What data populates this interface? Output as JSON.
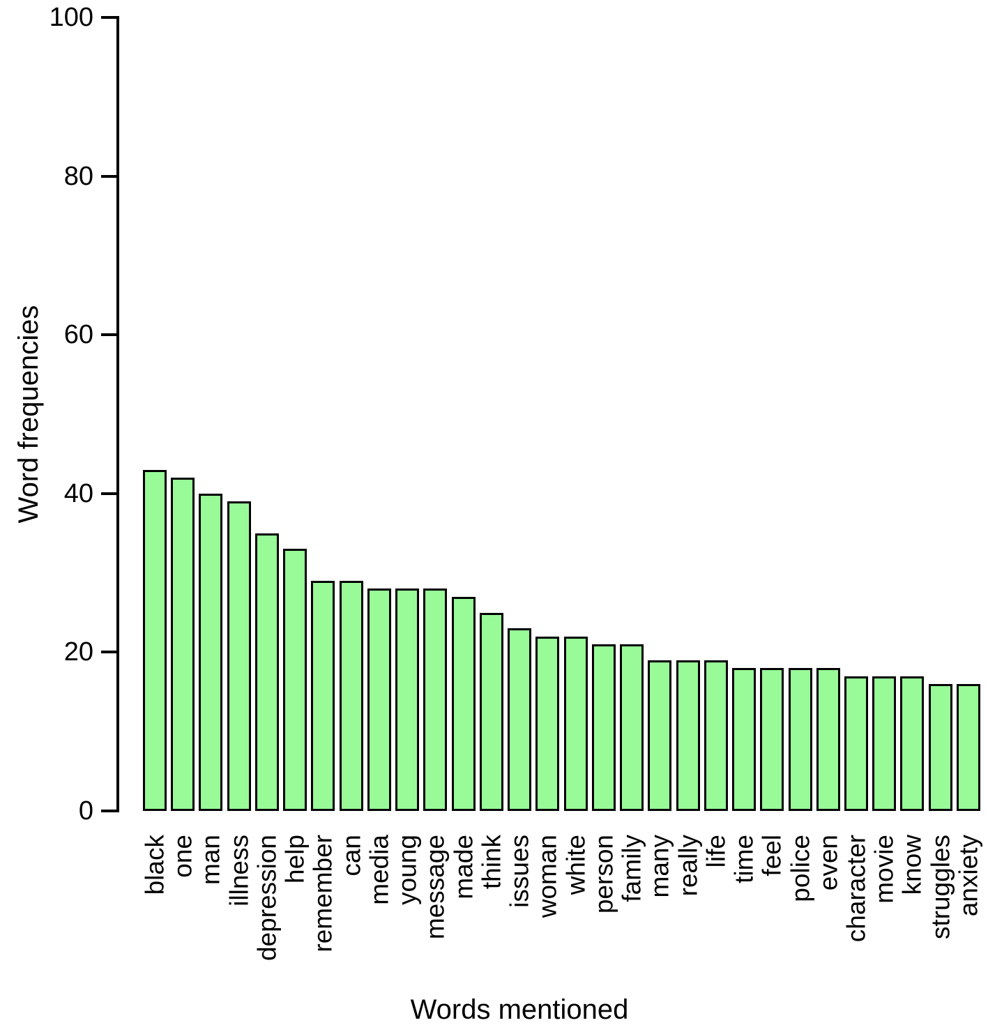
{
  "chart_data": {
    "type": "bar",
    "title": "",
    "xlabel": "Words mentioned",
    "ylabel": "Word frequencies",
    "categories": [
      "black",
      "one",
      "man",
      "illness",
      "depression",
      "help",
      "remember",
      "can",
      "media",
      "young",
      "message",
      "made",
      "think",
      "issues",
      "woman",
      "white",
      "person",
      "family",
      "many",
      "really",
      "life",
      "time",
      "feel",
      "police",
      "even",
      "character",
      "movie",
      "know",
      "struggles",
      "anxiety"
    ],
    "values": [
      43,
      42,
      40,
      39,
      35,
      33,
      29,
      29,
      28,
      28,
      28,
      27,
      25,
      23,
      22,
      22,
      21,
      21,
      19,
      19,
      19,
      18,
      18,
      18,
      18,
      17,
      17,
      17,
      16,
      16
    ],
    "ylim": [
      0,
      100
    ],
    "yticks": [
      0,
      20,
      40,
      60,
      80,
      100
    ],
    "grid": false,
    "legend_position": "none",
    "x_label_rotation_degrees": -90,
    "bar_color": "#98FB98",
    "bar_border_color": "#000000",
    "axis_color": "#000000",
    "text_color": "#000000",
    "background_color": "#FFFFFF"
  }
}
